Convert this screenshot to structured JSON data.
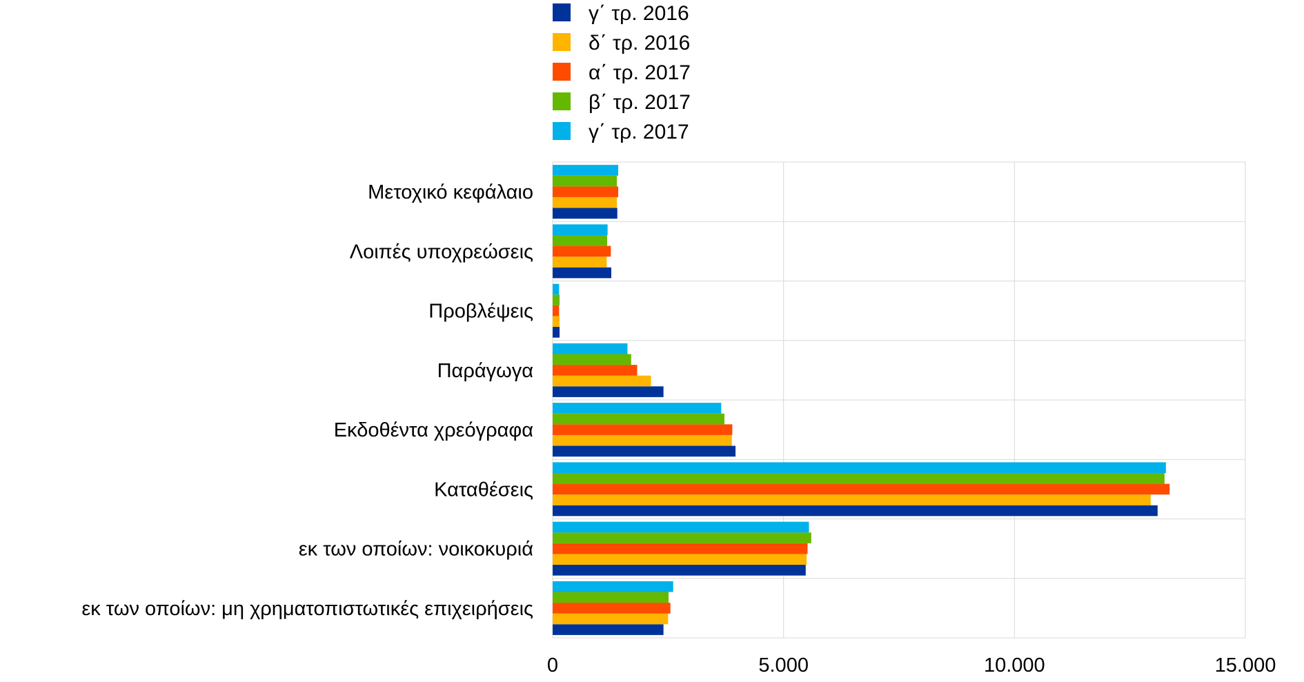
{
  "chart_data": {
    "type": "bar",
    "orientation": "horizontal",
    "categories": [
      "Μετοχικό κεφάλαιο",
      "Λοιπές υποχρεώσεις",
      "Προβλέψεις",
      "Παράγωγα",
      "Εκδοθέντα χρεόγραφα",
      "Καταθέσεις",
      "εκ των οποίων: νοικοκυριά",
      "εκ των οποίων: μη χρηματοπιστωτικές επιχειρήσεις"
    ],
    "series": [
      {
        "name": "γ΄ τρ. 2016",
        "color": "#003399",
        "values": [
          1400,
          1270,
          150,
          2400,
          3960,
          13100,
          5480,
          2400
        ]
      },
      {
        "name": "δ΄ τρ. 2016",
        "color": "#ffb400",
        "values": [
          1390,
          1170,
          150,
          2130,
          3880,
          12950,
          5500,
          2500
        ]
      },
      {
        "name": "α΄ τρ. 2017",
        "color": "#ff4b00",
        "values": [
          1420,
          1260,
          140,
          1830,
          3890,
          13360,
          5520,
          2550
        ]
      },
      {
        "name": "β΄ τρ. 2017",
        "color": "#65b800",
        "values": [
          1390,
          1180,
          150,
          1700,
          3720,
          13250,
          5600,
          2510
        ]
      },
      {
        "name": "γ΄ τρ. 2017",
        "color": "#00b1ea",
        "values": [
          1420,
          1190,
          140,
          1620,
          3650,
          13280,
          5550,
          2610
        ]
      }
    ],
    "xlim": [
      0,
      15000
    ],
    "x_ticks": [
      {
        "value": 0,
        "label": "0"
      },
      {
        "value": 5000,
        "label": "5.000"
      },
      {
        "value": 10000,
        "label": "10.000"
      },
      {
        "value": 15000,
        "label": "15.000"
      }
    ],
    "grid": true,
    "legend_position": "top"
  }
}
